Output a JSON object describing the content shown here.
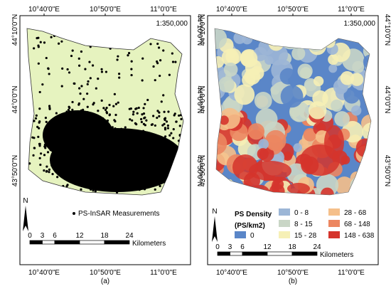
{
  "panels": [
    {
      "caption": "(a)",
      "scale": "1:350,000",
      "lon_labels": [
        "10°40'0\"E",
        "10°50'0\"E",
        "11°0'0\"E"
      ],
      "lat_labels": [
        "44°10'0\"N",
        "44°0'0\"N",
        "43°50'0\"N"
      ],
      "north": "N",
      "legend": {
        "label": "PS-InSAR Measurements"
      },
      "scale_bar": {
        "ticks": [
          0,
          3,
          6,
          12,
          18,
          24
        ],
        "unit": "Kilometers"
      }
    },
    {
      "caption": "(b)",
      "scale": "1:350,000",
      "lon_labels": [
        "10°40'0\"E",
        "10°50'0\"E",
        "11°0'0\"E"
      ],
      "lat_labels": [
        "44°10'0\"N",
        "44°0'0\"N",
        "43°50'0\"N"
      ],
      "north": "N",
      "legend": {
        "title": "PS Density",
        "unit": "(PS/km2)",
        "classes": [
          {
            "label": "0",
            "color": "#5a86c8"
          },
          {
            "label": "0 - 8",
            "color": "#9cb6d6"
          },
          {
            "label": "8 - 15",
            "color": "#c9d6c6"
          },
          {
            "label": "15 - 28",
            "color": "#f6f0b6"
          },
          {
            "label": "28 - 68",
            "color": "#f5bf8a"
          },
          {
            "label": "68 - 148",
            "color": "#ec8660"
          },
          {
            "label": "148 - 638",
            "color": "#d5342c"
          }
        ]
      },
      "scale_bar": {
        "ticks": [
          0,
          3,
          6,
          12,
          18,
          24
        ],
        "unit": "Kilometers"
      }
    }
  ]
}
